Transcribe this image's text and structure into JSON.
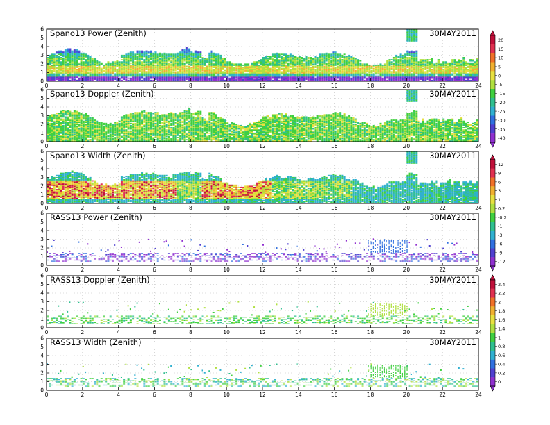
{
  "figure": {
    "date": "30MAY2011",
    "x_ticks": [
      "0",
      "2",
      "4",
      "6",
      "8",
      "10",
      "12",
      "14",
      "16",
      "18",
      "20",
      "22",
      "24"
    ],
    "y_ticks": [
      "0",
      "1",
      "2",
      "3",
      "4",
      "5",
      "6"
    ]
  },
  "chart_data": [
    {
      "type": "heatmap",
      "title": "Spano13 Power (Zenith)",
      "date": "30MAY2011",
      "xlim": [
        0,
        24
      ],
      "ylim": [
        0,
        6
      ],
      "field": "power",
      "colorbar_group": 0
    },
    {
      "type": "heatmap",
      "title": "Spano13 Doppler (Zenith)",
      "date": "30MAY2011",
      "xlim": [
        0,
        24
      ],
      "ylim": [
        0,
        6
      ],
      "field": "doppler",
      "colorbar_group": 0
    },
    {
      "type": "heatmap",
      "title": "Spano13 Width (Zenith)",
      "date": "30MAY2011",
      "xlim": [
        0,
        24
      ],
      "ylim": [
        0,
        6
      ],
      "field": "width",
      "colorbar_group": 1
    },
    {
      "type": "heatmap",
      "title": "RASS13 Power (Zenith)",
      "date": "30MAY2011",
      "xlim": [
        0,
        24
      ],
      "ylim": [
        0,
        6
      ],
      "field": "rass_power",
      "colorbar_group": 1
    },
    {
      "type": "heatmap",
      "title": "RASS13 Doppler (Zenith)",
      "date": "30MAY2011",
      "xlim": [
        0,
        24
      ],
      "ylim": [
        0,
        6
      ],
      "field": "rass_doppler",
      "colorbar_group": 2
    },
    {
      "type": "heatmap",
      "title": "RASS13 Width (Zenith)",
      "date": "30MAY2011",
      "xlim": [
        0,
        24
      ],
      "ylim": [
        0,
        6
      ],
      "field": "rass_width",
      "colorbar_group": 2
    }
  ],
  "colorbars": [
    {
      "labels": [
        "20",
        "15",
        "10",
        "5",
        "0",
        "-5",
        "-15",
        "-20",
        "-25",
        "-30",
        "-35",
        "-40"
      ],
      "colors": [
        "#c0103a",
        "#e03050",
        "#f07028",
        "#f0b030",
        "#e8e040",
        "#b0e040",
        "#40d040",
        "#30c090",
        "#30b0d0",
        "#3070e0",
        "#5040d0",
        "#9030d0"
      ]
    },
    {
      "labels": [
        "12",
        "9",
        "6",
        "3",
        "1",
        "0.2",
        "-0.2",
        "-1",
        "-3",
        "-6",
        "-9",
        "-12"
      ],
      "colors": [
        "#c0103a",
        "#e03050",
        "#f07028",
        "#f0b030",
        "#e8e040",
        "#b0e040",
        "#40d040",
        "#30c090",
        "#30b0d0",
        "#3070e0",
        "#5040d0",
        "#9030d0"
      ]
    },
    {
      "labels": [
        "2.4",
        "2.2",
        "2",
        "1.8",
        "1.6",
        "1.4",
        "1",
        "0.8",
        "0.6",
        "0.4",
        "0.2",
        "0"
      ],
      "colors": [
        "#c0103a",
        "#e03050",
        "#f07028",
        "#f0b030",
        "#e8e040",
        "#b0e040",
        "#40d040",
        "#30c090",
        "#30b0d0",
        "#3070e0",
        "#5040d0",
        "#9030d0"
      ]
    }
  ]
}
